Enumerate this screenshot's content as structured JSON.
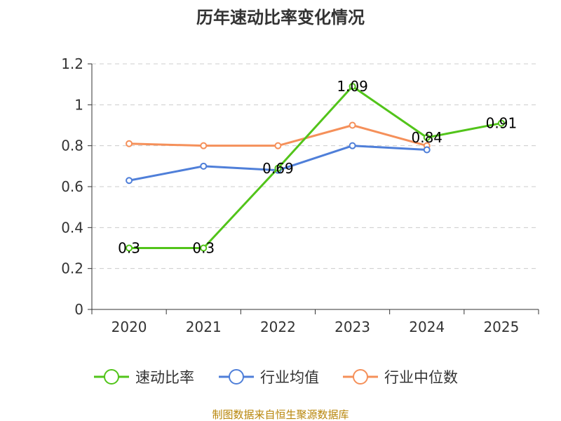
{
  "chart_data": {
    "type": "line",
    "title": "历年速动比率变化情况",
    "categories": [
      "2020",
      "2021",
      "2022",
      "2023",
      "2024",
      "2025"
    ],
    "ylim": [
      0,
      1.2
    ],
    "yticks": [
      "0",
      "0.2",
      "0.4",
      "0.6",
      "0.8",
      "1",
      "1.2"
    ],
    "grid": true,
    "legend_position": "bottom",
    "series": [
      {
        "name": "速动比率",
        "color": "#52c41a",
        "values": [
          0.3,
          0.3,
          0.69,
          1.09,
          0.84,
          0.91
        ],
        "labels": [
          "0.3",
          "0.3",
          "0.69",
          "1.09",
          "0.84",
          "0.91"
        ]
      },
      {
        "name": "行业均值",
        "color": "#4f7fd9",
        "values": [
          0.63,
          0.7,
          0.68,
          0.8,
          0.78,
          null
        ]
      },
      {
        "name": "行业中位数",
        "color": "#f5905a",
        "values": [
          0.81,
          0.8,
          0.8,
          0.9,
          0.8,
          null
        ]
      }
    ],
    "source": "制图数据来自恒生聚源数据库"
  }
}
